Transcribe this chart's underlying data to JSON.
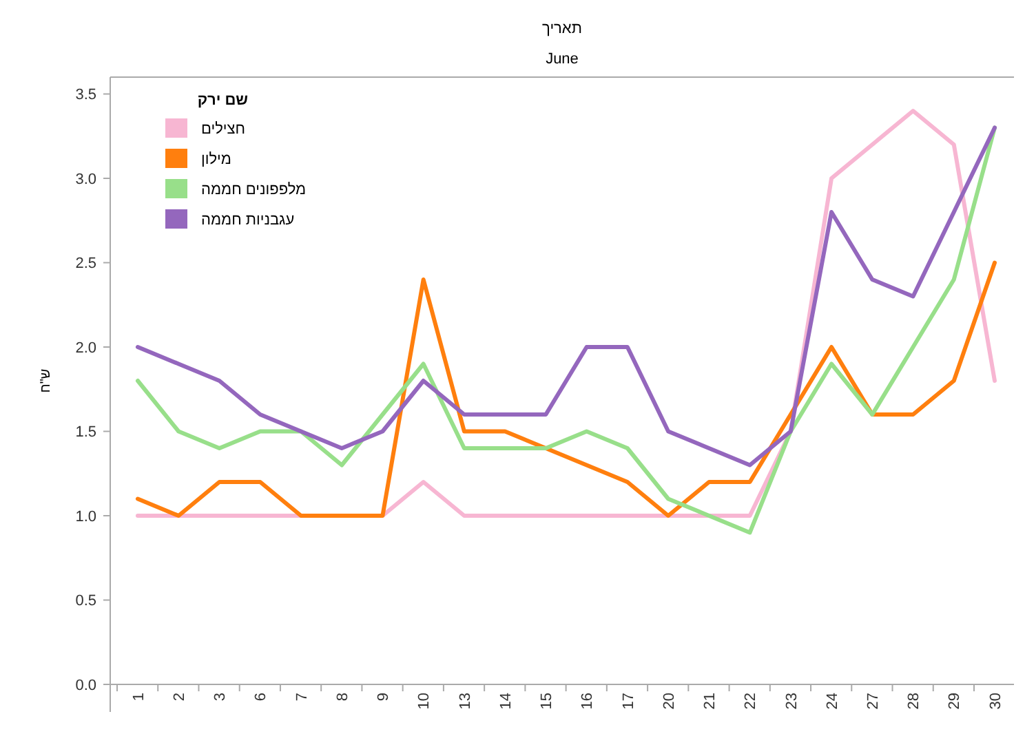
{
  "chart_data": {
    "type": "line",
    "title": "תאריך",
    "subtitle": "June",
    "ylabel": "ש\"ח",
    "legend_title": "שם ירק",
    "legend": "top left",
    "grid": false,
    "categories": [
      "1",
      "2",
      "3",
      "6",
      "7",
      "8",
      "9",
      "10",
      "13",
      "14",
      "15",
      "16",
      "17",
      "20",
      "21",
      "22",
      "23",
      "24",
      "27",
      "28",
      "29",
      "30"
    ],
    "ylim": [
      0,
      3.6
    ],
    "yticks": [
      {
        "value": 0,
        "label": "0.0"
      },
      0.5,
      {
        "value": 1,
        "label": "1.0"
      },
      1.5,
      {
        "value": 2,
        "label": "2.0"
      },
      2.5,
      {
        "value": 3,
        "label": "3.0"
      },
      3.5
    ],
    "series": [
      {
        "name": "חצילים",
        "color": "#f7b6d2",
        "values": [
          1,
          1,
          1,
          1,
          1,
          1,
          1,
          1.2,
          1,
          1,
          1,
          1,
          1,
          1,
          1,
          1,
          1.5,
          3.0,
          3.2,
          3.4,
          3.2,
          1.8
        ]
      },
      {
        "name": "מילון",
        "color": "#ff7f0e",
        "values": [
          1.1,
          1.0,
          1.2,
          1.2,
          1.0,
          1.0,
          1.0,
          2.4,
          1.5,
          1.5,
          1.4,
          1.3,
          1.2,
          1.0,
          1.2,
          1.2,
          1.6,
          2.0,
          1.6,
          1.6,
          1.8,
          2.5
        ]
      },
      {
        "name": "מלפפונים חממה",
        "color": "#98df8a",
        "values": [
          1.8,
          1.5,
          1.4,
          1.5,
          1.5,
          1.3,
          1.6,
          1.9,
          1.4,
          1.4,
          1.4,
          1.5,
          1.4,
          1.1,
          1.0,
          0.9,
          1.5,
          1.9,
          1.6,
          2.0,
          2.4,
          3.3
        ]
      },
      {
        "name": "עגבניות חממה",
        "color": "#9467bd",
        "values": [
          2.0,
          1.9,
          1.8,
          1.6,
          1.5,
          1.4,
          1.5,
          1.8,
          1.6,
          1.6,
          1.6,
          2.0,
          2.0,
          1.5,
          1.4,
          1.3,
          1.5,
          2.8,
          2.4,
          2.3,
          2.8,
          3.3
        ]
      }
    ]
  }
}
